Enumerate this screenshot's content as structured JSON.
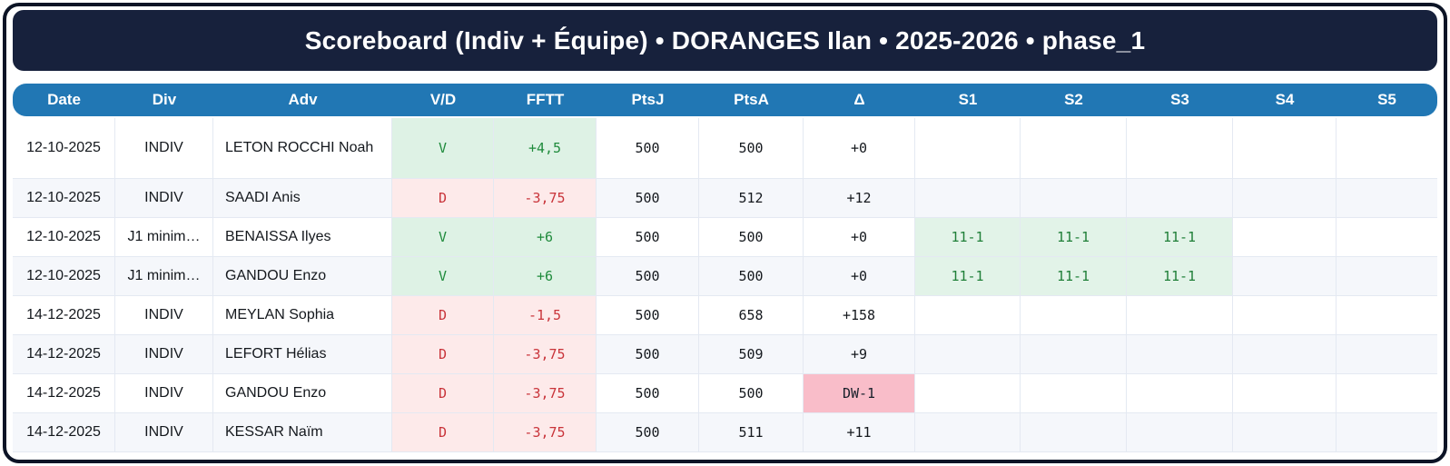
{
  "title": "Scoreboard (Indiv + Équipe) • DORANGES Ilan • 2025-2026 • phase_1",
  "table": {
    "columns": [
      {
        "key": "date",
        "label": "Date"
      },
      {
        "key": "div",
        "label": "Div"
      },
      {
        "key": "adv",
        "label": "Adv"
      },
      {
        "key": "vd",
        "label": "V/D"
      },
      {
        "key": "fftt",
        "label": "FFTT"
      },
      {
        "key": "ptsj",
        "label": "PtsJ"
      },
      {
        "key": "ptsa",
        "label": "PtsA"
      },
      {
        "key": "delta",
        "label": "Δ"
      },
      {
        "key": "s1",
        "label": "S1"
      },
      {
        "key": "s2",
        "label": "S2"
      },
      {
        "key": "s3",
        "label": "S3"
      },
      {
        "key": "s4",
        "label": "S4"
      },
      {
        "key": "s5",
        "label": "S5"
      }
    ],
    "rows": [
      {
        "date": "12-10-2025",
        "div": "INDIV",
        "adv": "LETON ROCCHI Noah",
        "vd": "V",
        "fftt": "+4,5",
        "ptsj": "500",
        "ptsa": "500",
        "delta": "+0",
        "s1": "",
        "s2": "",
        "s3": "",
        "s4": "",
        "s5": "",
        "result": "win",
        "delta_penalty": false
      },
      {
        "date": "12-10-2025",
        "div": "INDIV",
        "adv": "SAADI Anis",
        "vd": "D",
        "fftt": "-3,75",
        "ptsj": "500",
        "ptsa": "512",
        "delta": "+12",
        "s1": "",
        "s2": "",
        "s3": "",
        "s4": "",
        "s5": "",
        "result": "loss",
        "delta_penalty": false
      },
      {
        "date": "12-10-2025",
        "div": "J1 minim…",
        "adv": "BENAISSA Ilyes",
        "vd": "V",
        "fftt": "+6",
        "ptsj": "500",
        "ptsa": "500",
        "delta": "+0",
        "s1": "11-1",
        "s2": "11-1",
        "s3": "11-1",
        "s4": "",
        "s5": "",
        "result": "win",
        "delta_penalty": false
      },
      {
        "date": "12-10-2025",
        "div": "J1 minim…",
        "adv": "GANDOU Enzo",
        "vd": "V",
        "fftt": "+6",
        "ptsj": "500",
        "ptsa": "500",
        "delta": "+0",
        "s1": "11-1",
        "s2": "11-1",
        "s3": "11-1",
        "s4": "",
        "s5": "",
        "result": "win",
        "delta_penalty": false
      },
      {
        "date": "14-12-2025",
        "div": "INDIV",
        "adv": "MEYLAN Sophia",
        "vd": "D",
        "fftt": "-1,5",
        "ptsj": "500",
        "ptsa": "658",
        "delta": "+158",
        "s1": "",
        "s2": "",
        "s3": "",
        "s4": "",
        "s5": "",
        "result": "loss",
        "delta_penalty": false
      },
      {
        "date": "14-12-2025",
        "div": "INDIV",
        "adv": "LEFORT Hélias",
        "vd": "D",
        "fftt": "-3,75",
        "ptsj": "500",
        "ptsa": "509",
        "delta": "+9",
        "s1": "",
        "s2": "",
        "s3": "",
        "s4": "",
        "s5": "",
        "result": "loss",
        "delta_penalty": false
      },
      {
        "date": "14-12-2025",
        "div": "INDIV",
        "adv": "GANDOU Enzo",
        "vd": "D",
        "fftt": "-3,75",
        "ptsj": "500",
        "ptsa": "500",
        "delta": "DW-1",
        "s1": "",
        "s2": "",
        "s3": "",
        "s4": "",
        "s5": "",
        "result": "loss",
        "delta_penalty": true
      },
      {
        "date": "14-12-2025",
        "div": "INDIV",
        "adv": "KESSAR Naïm",
        "vd": "D",
        "fftt": "-3,75",
        "ptsj": "500",
        "ptsa": "511",
        "delta": "+11",
        "s1": "",
        "s2": "",
        "s3": "",
        "s4": "",
        "s5": "",
        "result": "loss",
        "delta_penalty": false
      }
    ]
  },
  "colors": {
    "banner_bg": "#17213c",
    "header_bg": "#2177b4",
    "win_bg": "#def2e5",
    "win_text": "#1f8b3c",
    "loss_bg": "#fdeaea",
    "loss_text": "#c9343a",
    "set_win_bg": "#e2f3e8",
    "set_win_text": "#1f7f38",
    "penalty_bg": "#f9bdc9",
    "row_alt_bg": "#f5f7fb",
    "grid_line": "#e4e9f2"
  }
}
